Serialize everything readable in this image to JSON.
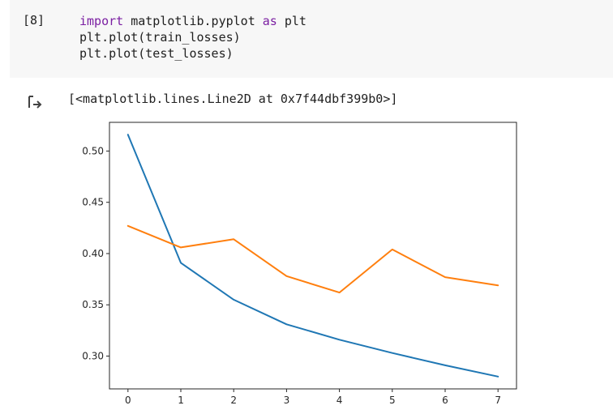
{
  "cell": {
    "exec_count": "[8]",
    "code": {
      "line1": {
        "kw1": "import",
        "mid": " matplotlib.pyplot ",
        "kw2": "as",
        "end": " plt"
      },
      "line2": "plt.plot(train_losses)",
      "line3": "plt.plot(test_losses)"
    }
  },
  "output": {
    "icon": "output-arrow-icon",
    "text": "[<matplotlib.lines.Line2D at 0x7f44dbf399b0>]"
  },
  "chart_data": {
    "type": "line",
    "x": [
      0,
      1,
      2,
      3,
      4,
      5,
      6,
      7
    ],
    "series": [
      {
        "values": [
          0.516,
          0.391,
          0.355,
          0.331,
          0.316,
          0.303,
          0.291,
          0.28
        ],
        "color": "#1f77b4"
      },
      {
        "values": [
          0.427,
          0.406,
          0.414,
          0.378,
          0.362,
          0.404,
          0.377,
          0.369
        ],
        "color": "#ff7f0e"
      }
    ],
    "xticks": [
      "0",
      "1",
      "2",
      "3",
      "4",
      "5",
      "6",
      "7"
    ],
    "yticks": [
      0.3,
      0.35,
      0.4,
      0.45,
      0.5
    ],
    "ytick_labels": [
      "0.30",
      "0.35",
      "0.40",
      "0.45",
      "0.50"
    ],
    "xlim": [
      -0.35,
      7.35
    ],
    "ylim": [
      0.268,
      0.528
    ],
    "grid": false,
    "title": "",
    "xlabel": "",
    "ylabel": ""
  }
}
